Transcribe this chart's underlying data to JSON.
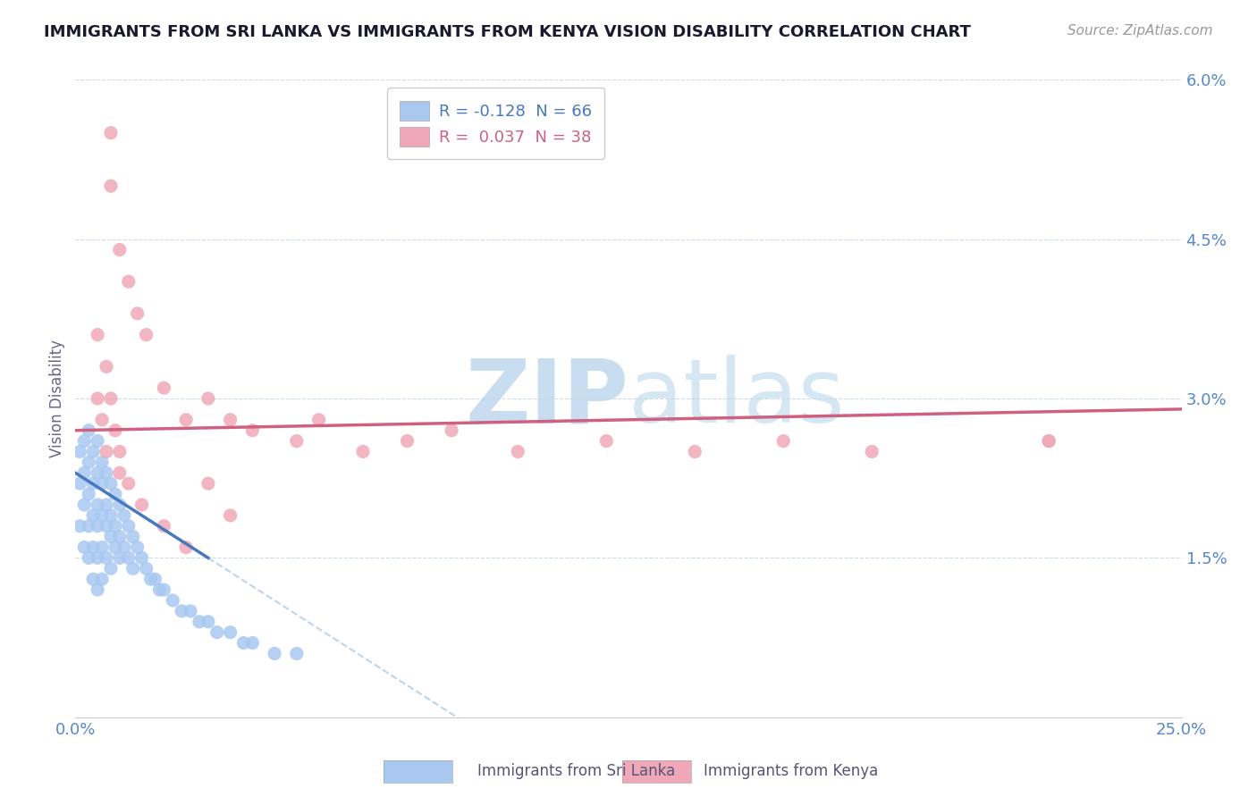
{
  "title": "IMMIGRANTS FROM SRI LANKA VS IMMIGRANTS FROM KENYA VISION DISABILITY CORRELATION CHART",
  "source": "Source: ZipAtlas.com",
  "ylabel": "Vision Disability",
  "xlim": [
    0.0,
    0.25
  ],
  "ylim": [
    0.0,
    0.06
  ],
  "yticks": [
    0.0,
    0.015,
    0.03,
    0.045,
    0.06
  ],
  "ytick_labels": [
    "",
    "1.5%",
    "3.0%",
    "4.5%",
    "6.0%"
  ],
  "xticks": [
    0.0,
    0.025,
    0.05,
    0.075,
    0.1,
    0.125,
    0.15,
    0.175,
    0.2,
    0.225,
    0.25
  ],
  "xtick_labels": [
    "0.0%",
    "",
    "",
    "",
    "",
    "",
    "",
    "",
    "",
    "",
    "25.0%"
  ],
  "sri_lanka_color": "#a8c8f0",
  "kenya_color": "#f0a8b8",
  "sri_lanka_line_color": "#4878c0",
  "kenya_line_color": "#d06080",
  "dashed_line_color": "#b8d0e8",
  "watermark_zip_color": "#c8ddf0",
  "watermark_atlas_color": "#d8e8f0",
  "background_color": "#ffffff",
  "grid_color": "#c8d8e8",
  "title_color": "#1a1a2e",
  "tick_color": "#5588cc",
  "legend_R1": "R = -0.128",
  "legend_N1": "N = 66",
  "legend_R2": "R =  0.037",
  "legend_N2": "N = 38",
  "legend_color1": "#4878c0",
  "legend_color2": "#d06080",
  "legend_patch_color1": "#a8c8f0",
  "legend_patch_color2": "#f0a8b8",
  "bottom_label1": "Immigrants from Sri Lanka",
  "bottom_label2": "Immigrants from Kenya",
  "sri_lanka_line_x0": 0.0,
  "sri_lanka_line_y0": 0.023,
  "sri_lanka_line_x1": 0.03,
  "sri_lanka_line_y1": 0.015,
  "kenya_line_x0": 0.0,
  "kenya_line_y0": 0.027,
  "kenya_line_x1": 0.25,
  "kenya_line_y1": 0.029,
  "sl_scatter_x": [
    0.001,
    0.001,
    0.001,
    0.002,
    0.002,
    0.002,
    0.002,
    0.003,
    0.003,
    0.003,
    0.003,
    0.003,
    0.004,
    0.004,
    0.004,
    0.004,
    0.004,
    0.005,
    0.005,
    0.005,
    0.005,
    0.005,
    0.005,
    0.006,
    0.006,
    0.006,
    0.006,
    0.006,
    0.007,
    0.007,
    0.007,
    0.007,
    0.008,
    0.008,
    0.008,
    0.008,
    0.009,
    0.009,
    0.009,
    0.01,
    0.01,
    0.01,
    0.011,
    0.011,
    0.012,
    0.012,
    0.013,
    0.013,
    0.014,
    0.015,
    0.016,
    0.017,
    0.018,
    0.019,
    0.02,
    0.022,
    0.024,
    0.026,
    0.028,
    0.03,
    0.032,
    0.035,
    0.038,
    0.04,
    0.045,
    0.05
  ],
  "sl_scatter_y": [
    0.025,
    0.022,
    0.018,
    0.026,
    0.023,
    0.02,
    0.016,
    0.027,
    0.024,
    0.021,
    0.018,
    0.015,
    0.025,
    0.022,
    0.019,
    0.016,
    0.013,
    0.026,
    0.023,
    0.02,
    0.018,
    0.015,
    0.012,
    0.024,
    0.022,
    0.019,
    0.016,
    0.013,
    0.023,
    0.02,
    0.018,
    0.015,
    0.022,
    0.019,
    0.017,
    0.014,
    0.021,
    0.018,
    0.016,
    0.02,
    0.017,
    0.015,
    0.019,
    0.016,
    0.018,
    0.015,
    0.017,
    0.014,
    0.016,
    0.015,
    0.014,
    0.013,
    0.013,
    0.012,
    0.012,
    0.011,
    0.01,
    0.01,
    0.009,
    0.009,
    0.008,
    0.008,
    0.007,
    0.007,
    0.006,
    0.006
  ],
  "ke_scatter_x": [
    0.008,
    0.008,
    0.01,
    0.012,
    0.014,
    0.016,
    0.02,
    0.025,
    0.03,
    0.035,
    0.04,
    0.05,
    0.055,
    0.065,
    0.075,
    0.085,
    0.1,
    0.12,
    0.14,
    0.16,
    0.18,
    0.22,
    0.22,
    0.005,
    0.007,
    0.008,
    0.009,
    0.01,
    0.012,
    0.015,
    0.02,
    0.025,
    0.03,
    0.035,
    0.005,
    0.006,
    0.007,
    0.01
  ],
  "ke_scatter_y": [
    0.055,
    0.05,
    0.044,
    0.041,
    0.038,
    0.036,
    0.031,
    0.028,
    0.03,
    0.028,
    0.027,
    0.026,
    0.028,
    0.025,
    0.026,
    0.027,
    0.025,
    0.026,
    0.025,
    0.026,
    0.025,
    0.026,
    0.026,
    0.036,
    0.033,
    0.03,
    0.027,
    0.025,
    0.022,
    0.02,
    0.018,
    0.016,
    0.022,
    0.019,
    0.03,
    0.028,
    0.025,
    0.023
  ]
}
